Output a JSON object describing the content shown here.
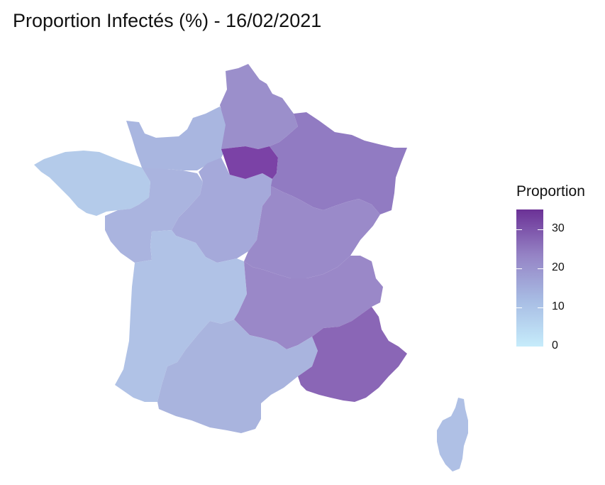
{
  "title": "Proportion Infectés (%) - 16/02/2021",
  "legend": {
    "title": "Proportion",
    "min": 0,
    "max": 35,
    "colors": [
      "#c6ecfb",
      "#a8bde4",
      "#9583c5",
      "#6b3196"
    ],
    "ticks": [
      {
        "value": 0,
        "label": "0"
      },
      {
        "value": 10,
        "label": "10"
      },
      {
        "value": 20,
        "label": "20"
      },
      {
        "value": 30,
        "label": "30"
      }
    ]
  },
  "regions": [
    {
      "name": "Bretagne",
      "value": 8.5,
      "color": "#b4cbea"
    },
    {
      "name": "Normandie",
      "value": 13,
      "color": "#a9b6e0"
    },
    {
      "name": "Pays de la Loire",
      "value": 13,
      "color": "#aab4df"
    },
    {
      "name": "Centre-Val de Loire",
      "value": 15,
      "color": "#a5a9da"
    },
    {
      "name": "Hauts-de-France",
      "value": 20,
      "color": "#9b8fcb"
    },
    {
      "name": "Île-de-France",
      "value": 33,
      "color": "#7b42a6"
    },
    {
      "name": "Grand Est",
      "value": 25,
      "color": "#917bc2"
    },
    {
      "name": "Bourgogne-Franche-Comté",
      "value": 20,
      "color": "#9a8ac9"
    },
    {
      "name": "Nouvelle-Aquitaine",
      "value": 11,
      "color": "#b0c2e6"
    },
    {
      "name": "Auvergne-Rhône-Alpes",
      "value": 21,
      "color": "#9a88c8"
    },
    {
      "name": "Occitanie",
      "value": 13,
      "color": "#a9b4de"
    },
    {
      "name": "Provence-Alpes-Côte d'Azur",
      "value": 28,
      "color": "#8a66b6"
    },
    {
      "name": "Corse",
      "value": 11,
      "color": "#afc0e5"
    }
  ]
}
